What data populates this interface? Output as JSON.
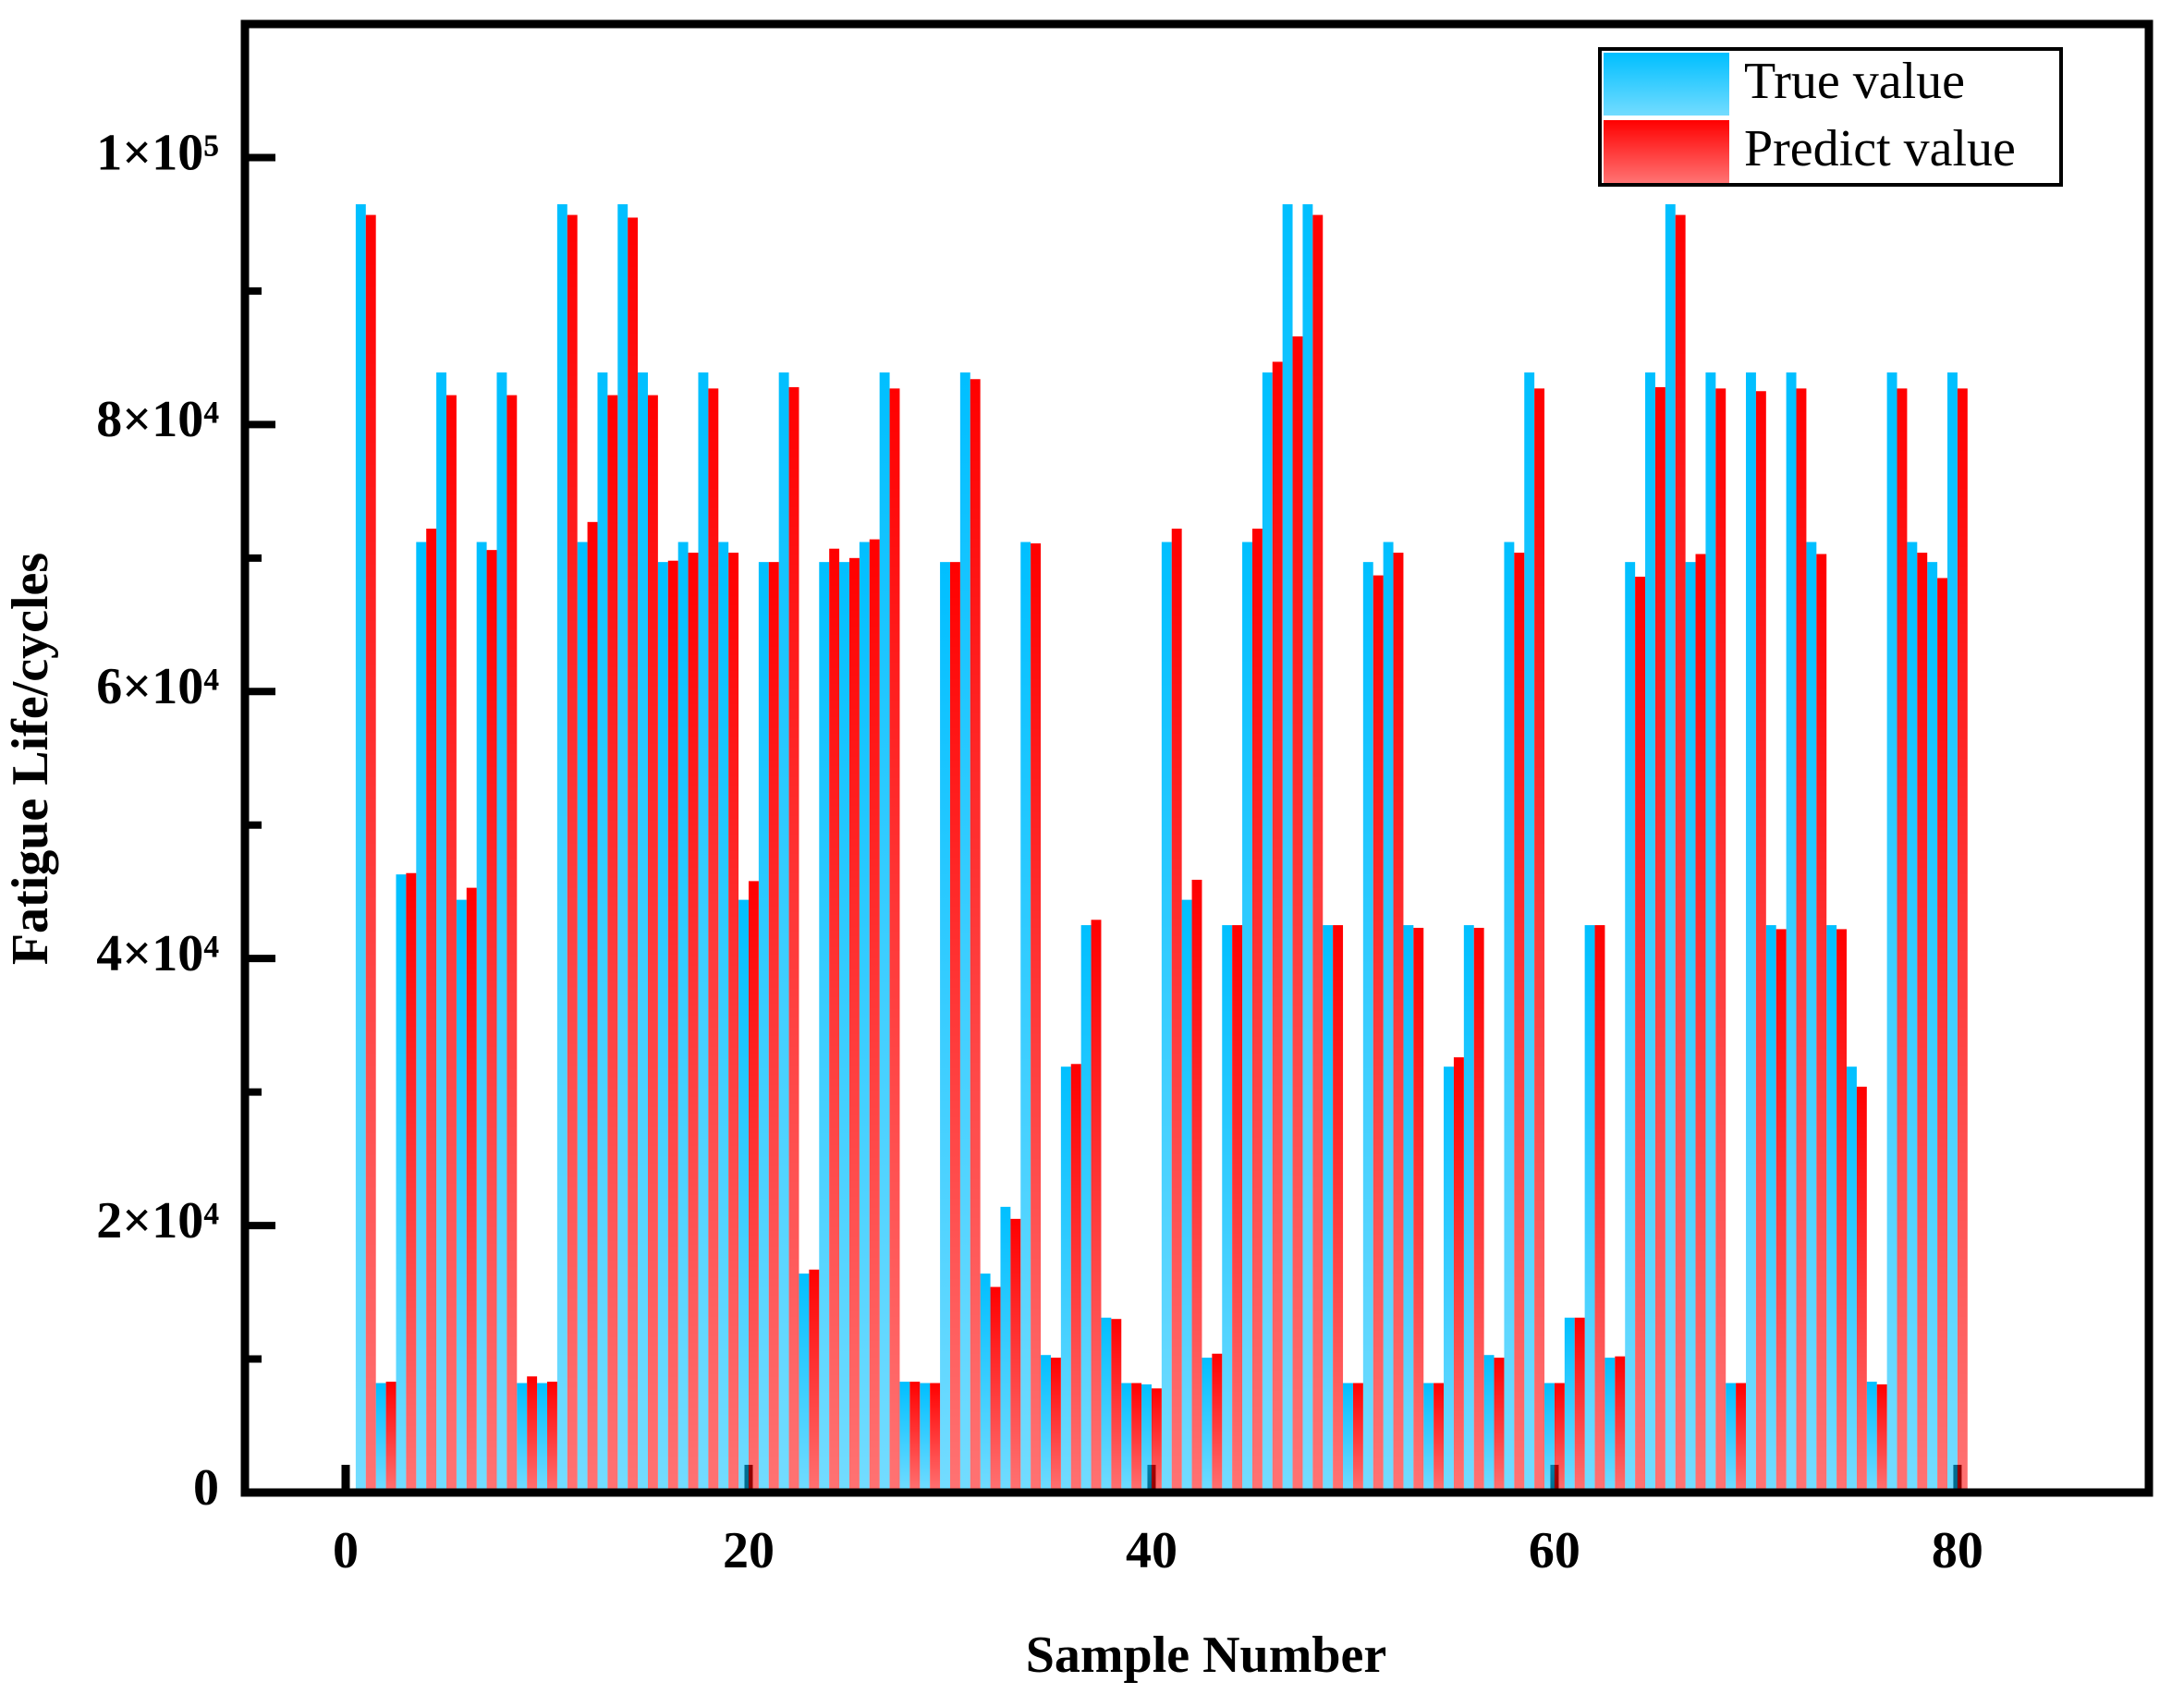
{
  "chart_data": {
    "type": "bar",
    "x_label": "Sample Number",
    "y_label": "Fatigue Life/cycles",
    "x": [
      1,
      2,
      3,
      4,
      5,
      6,
      7,
      8,
      9,
      10,
      11,
      12,
      13,
      14,
      15,
      16,
      17,
      18,
      19,
      20,
      21,
      22,
      23,
      24,
      25,
      26,
      27,
      28,
      29,
      30,
      31,
      32,
      33,
      34,
      35,
      36,
      37,
      38,
      39,
      40,
      41,
      42,
      43,
      44,
      45,
      46,
      47,
      48,
      49,
      50,
      51,
      52,
      53,
      54,
      55,
      56,
      57,
      58,
      59,
      60,
      61,
      62,
      63,
      64,
      65,
      66,
      67,
      68,
      69,
      70,
      71,
      72,
      73,
      74,
      75,
      76,
      77,
      78,
      79,
      80
    ],
    "series": [
      {
        "name": "True value",
        "color": "#00bfff",
        "values": [
          96500,
          8200,
          46300,
          71200,
          83900,
          44400,
          71200,
          83900,
          8200,
          8200,
          96500,
          71200,
          83900,
          96500,
          83900,
          69700,
          71200,
          83900,
          71200,
          44400,
          69700,
          83900,
          16400,
          69700,
          69700,
          71200,
          83900,
          8300,
          8200,
          69700,
          83900,
          16400,
          21400,
          71200,
          10300,
          31900,
          42500,
          13100,
          8200,
          8100,
          71200,
          44400,
          10100,
          42500,
          71200,
          83900,
          96500,
          96500,
          42500,
          8200,
          69700,
          71200,
          42500,
          8200,
          31900,
          42500,
          10300,
          71200,
          83900,
          8200,
          13100,
          42500,
          10100,
          69700,
          83900,
          96500,
          69700,
          83900,
          8200,
          83900,
          42500,
          83900,
          71200,
          42500,
          31900,
          8300,
          83900,
          71200,
          69700,
          83900
        ]
      },
      {
        "name": "Predict value",
        "color": "#ff0000",
        "values": [
          95700,
          8300,
          46400,
          72200,
          82200,
          45300,
          70600,
          82200,
          8700,
          8300,
          95700,
          72700,
          82200,
          95500,
          82200,
          69800,
          70400,
          82700,
          70400,
          45800,
          69700,
          82800,
          16700,
          70700,
          70000,
          71400,
          82700,
          8300,
          8200,
          69700,
          83400,
          15400,
          20500,
          71100,
          10100,
          32100,
          42900,
          13000,
          8200,
          7800,
          72200,
          45900,
          10400,
          42500,
          72200,
          84700,
          86600,
          95700,
          42500,
          8200,
          68700,
          70400,
          42300,
          8200,
          32600,
          42300,
          10100,
          70400,
          82700,
          8200,
          13100,
          42500,
          10200,
          68600,
          82800,
          95700,
          70300,
          82700,
          8200,
          82500,
          42200,
          82700,
          70300,
          42200,
          30400,
          8100,
          82700,
          70400,
          68500,
          82700
        ]
      }
    ],
    "xlim": [
      -5,
      89.5
    ],
    "xticks": [
      0,
      20,
      40,
      60,
      80
    ],
    "ylim": [
      0,
      110000
    ],
    "yticks": [
      0,
      {
        "value": 20000,
        "label": "2×10⁴"
      },
      {
        "value": 40000,
        "label": "4×10⁴"
      },
      {
        "value": 60000,
        "label": "6×10⁴"
      },
      {
        "value": 80000,
        "label": "8×10⁴"
      },
      {
        "value": 100000,
        "label": "1×10⁵"
      }
    ],
    "yminorticks": [
      10000,
      30000,
      50000,
      70000,
      90000
    ],
    "legend": "upper right"
  }
}
